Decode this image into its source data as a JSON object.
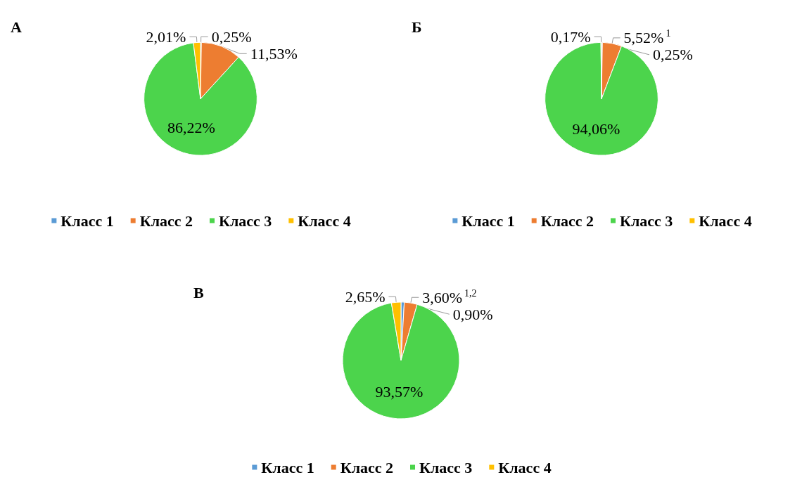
{
  "chart_data": [
    {
      "type": "pie",
      "title": "А",
      "categories": [
        "Класс 1",
        "Класс 2",
        "Класс 3",
        "Класс 4"
      ],
      "values": [
        0.25,
        11.53,
        86.22,
        2.01
      ],
      "colors": [
        "#5b9bd5",
        "#ed7d31",
        "#4cd44c",
        "#ffc000"
      ],
      "value_labels": [
        "0,25%",
        "11,53%",
        "86,22%",
        "2,01%"
      ],
      "legend": "bottom"
    },
    {
      "type": "pie",
      "title": "Б",
      "categories": [
        "Класс 1",
        "Класс 2",
        "Класс 3",
        "Класс 4"
      ],
      "values": [
        0.25,
        5.52,
        94.06,
        0.17
      ],
      "colors": [
        "#5b9bd5",
        "#ed7d31",
        "#4cd44c",
        "#ffc000"
      ],
      "value_labels": [
        "0,25%",
        "5,52%$^{1}$",
        "94,06%",
        "0,17%"
      ],
      "legend": "bottom"
    },
    {
      "type": "pie",
      "title": "В",
      "categories": [
        "Класс 1",
        "Класс 2",
        "Класс 3",
        "Класс 4"
      ],
      "values": [
        0.9,
        3.6,
        93.57,
        2.65
      ],
      "colors": [
        "#5b9bd5",
        "#ed7d31",
        "#4cd44c",
        "#ffc000"
      ],
      "value_labels": [
        "0,90%",
        "3,60%$^{1,2}$",
        "93,57%",
        "2,65%"
      ],
      "legend": "bottom"
    }
  ]
}
